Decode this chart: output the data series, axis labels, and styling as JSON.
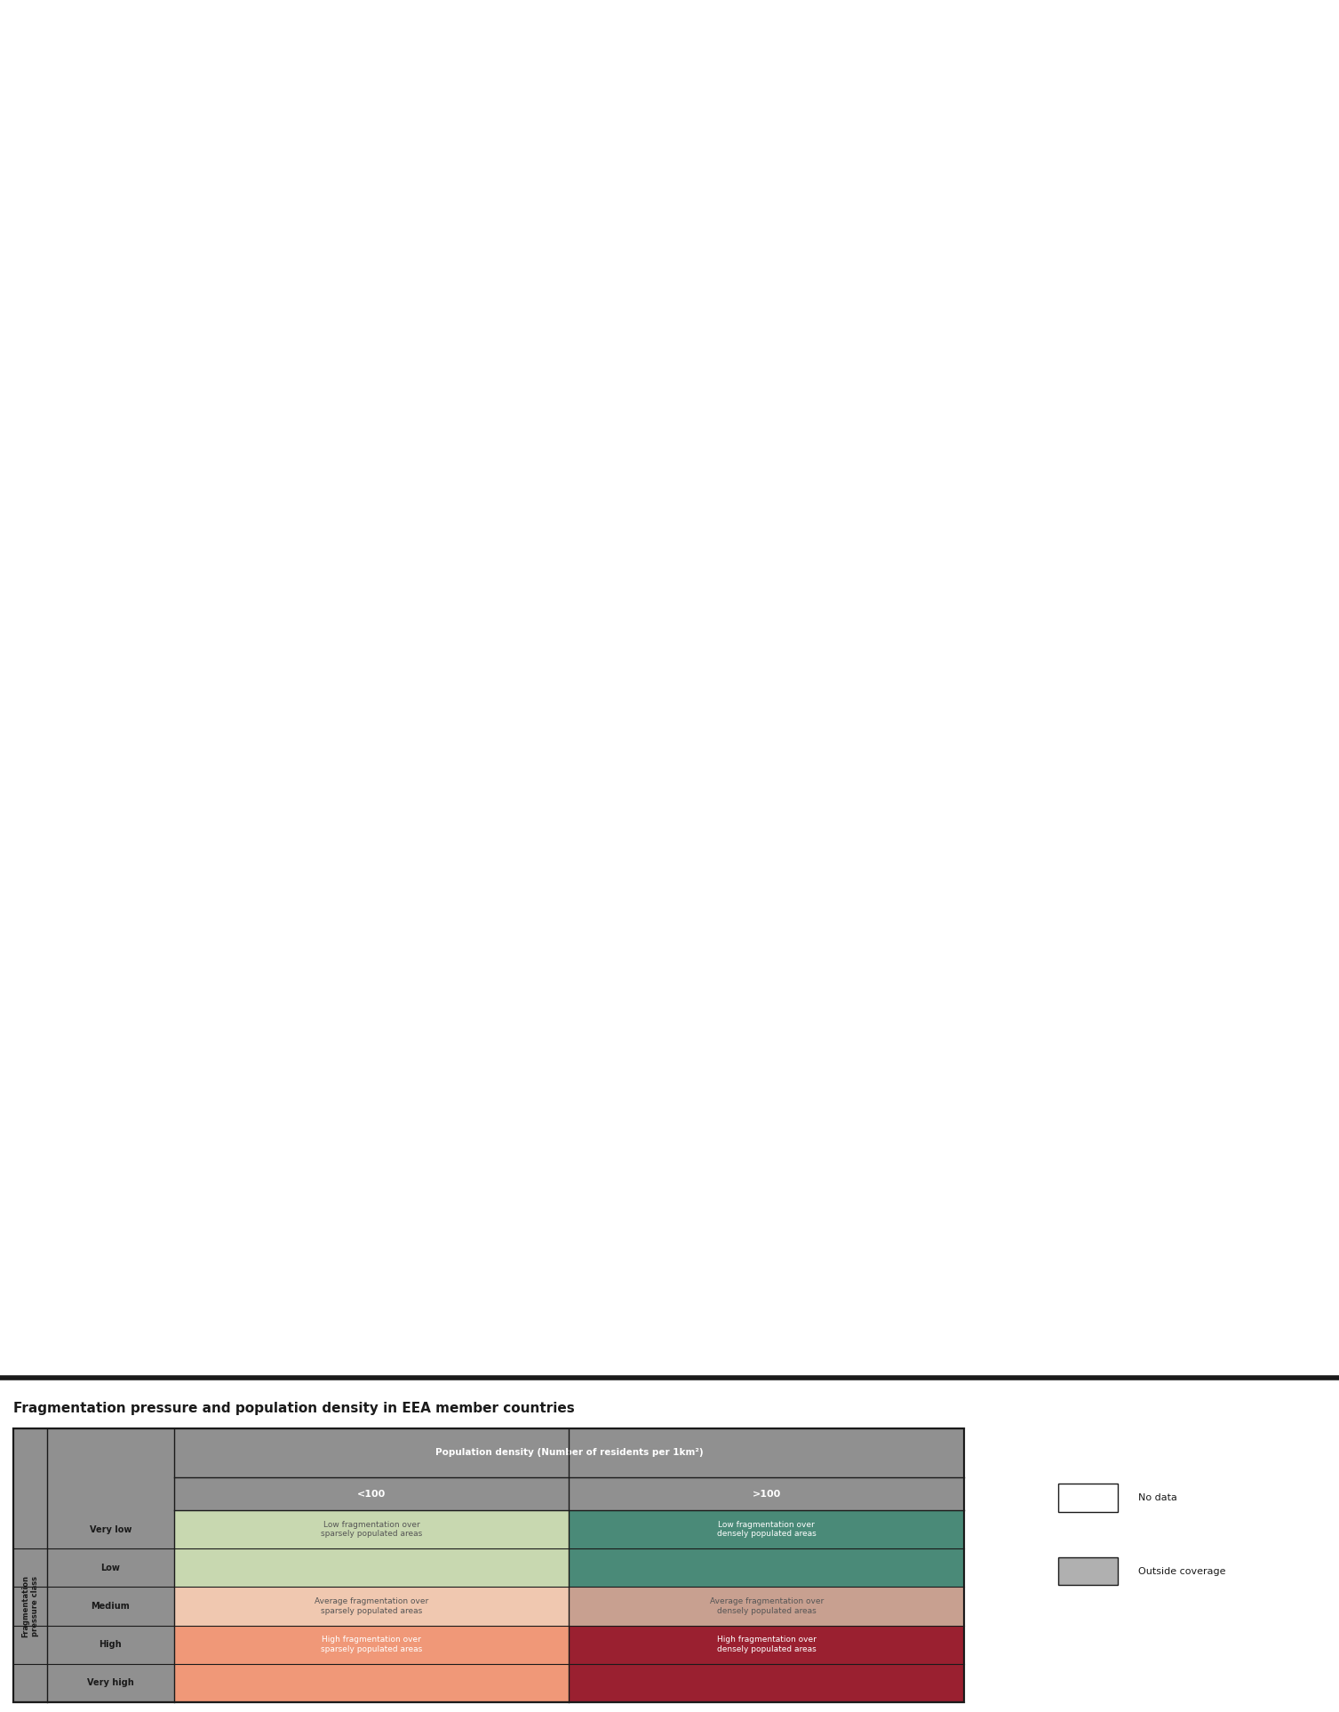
{
  "title": "Fragmentation pressure and population density in EEA member countries",
  "map_bg_color": "#c8dff0",
  "outside_bg_color": "#d3d3d3",
  "legend_bg": "#ffffff",
  "table_title": "Population density (Number of residents per 1km²)",
  "col_headers": [
    "<100",
    ">100"
  ],
  "row_labels": [
    "Very low",
    "Low",
    "Medium",
    "High",
    "Very high"
  ],
  "cell_colors": [
    [
      "#c8d8b0",
      "#4a8a78"
    ],
    [
      "#c8d8b0",
      "#4a8a78"
    ],
    [
      "#f0c8b0",
      "#c8a090"
    ],
    [
      "#f09878",
      "#9a2030"
    ],
    [
      "#f09878",
      "#9a2030"
    ]
  ],
  "cell_texts": [
    [
      "Low fragmentation over\nsparsely populated areas",
      "Low fragmentation over\ndensely populated areas"
    ],
    [
      "",
      ""
    ],
    [
      "Average fragmentation over\nsparsely populated areas",
      "Average fragmentation over\ndensely populated areas"
    ],
    [
      "High fragmentation over\nsparsely populated areas",
      "High fragmentation over\ndensely populated areas"
    ],
    [
      "",
      ""
    ]
  ],
  "cell_text_colors": [
    [
      "#555555",
      "#ffffff"
    ],
    [
      "#555555",
      "#ffffff"
    ],
    [
      "#555555",
      "#555555"
    ],
    [
      "#ffffff",
      "#ffffff"
    ],
    [
      "#ffffff",
      "#ffffff"
    ]
  ],
  "merged_rows": [
    [
      0,
      1
    ],
    [
      3,
      4
    ]
  ],
  "side_label": "Fragmentation\npressure class",
  "no_data_color": "#ffffff",
  "outside_coverage_color": "#b0b0b0",
  "separator_color": "#1a1a1a",
  "header_bg": "#8a8a8a",
  "row_label_bg": "#8a8a8a",
  "table_border": "#1a1a1a",
  "figsize": [
    15.07,
    19.26
  ],
  "dpi": 100
}
